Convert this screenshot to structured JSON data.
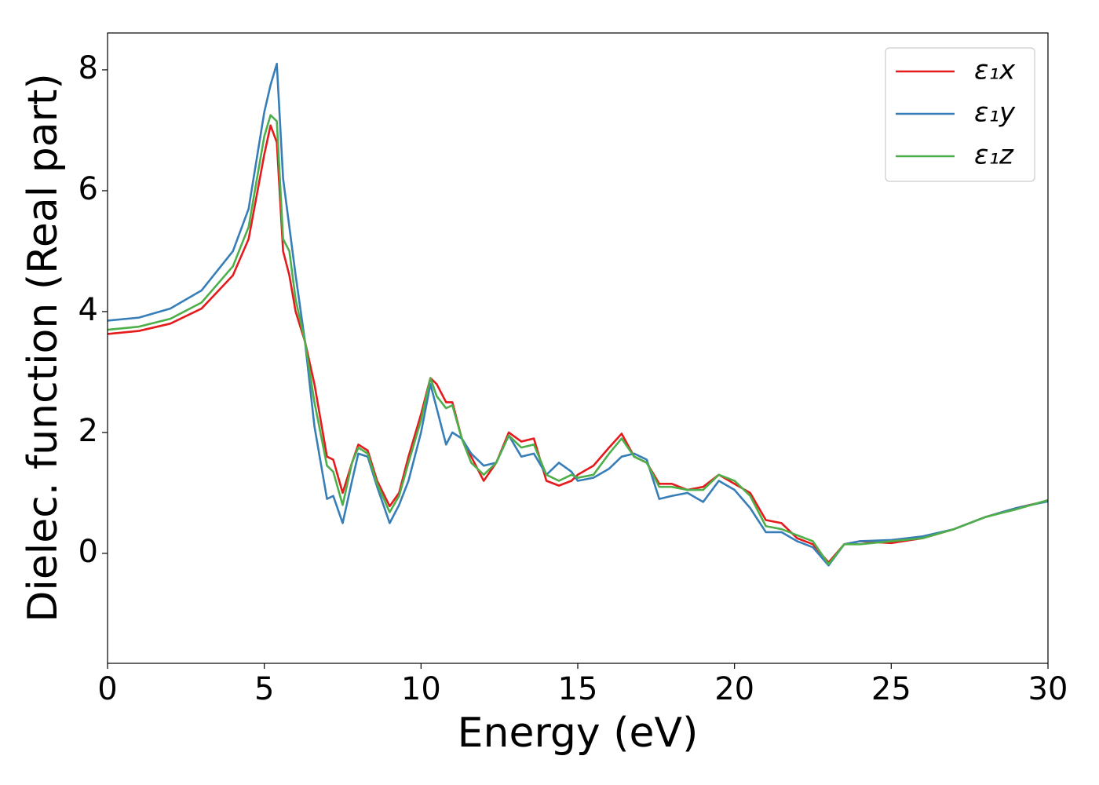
{
  "chart_data": {
    "type": "line",
    "xlabel": "Energy (eV)",
    "ylabel": "Dielec. function (Real part)",
    "x": [
      0,
      1,
      2,
      3,
      4,
      4.5,
      5,
      5.2,
      5.4,
      5.6,
      5.8,
      6,
      6.3,
      6.6,
      7,
      7.2,
      7.5,
      7.8,
      8,
      8.3,
      8.6,
      9,
      9.3,
      9.6,
      10,
      10.3,
      10.5,
      10.8,
      11,
      11.3,
      11.6,
      12,
      12.4,
      12.8,
      13.2,
      13.6,
      14,
      14.4,
      14.8,
      15,
      15.5,
      16,
      16.4,
      16.8,
      17.2,
      17.6,
      18,
      18.5,
      19,
      19.5,
      20,
      20.5,
      21,
      21.5,
      22,
      22.5,
      23,
      23.5,
      24,
      25,
      26,
      27,
      28,
      29,
      30
    ],
    "series": [
      {
        "name": "ε₁x",
        "color": "#e41a1c",
        "values": [
          3.63,
          3.68,
          3.8,
          4.05,
          4.6,
          5.2,
          6.6,
          7.08,
          6.8,
          5.0,
          4.6,
          4.0,
          3.5,
          2.8,
          1.6,
          1.55,
          1.0,
          1.5,
          1.8,
          1.7,
          1.2,
          0.78,
          1.0,
          1.6,
          2.3,
          2.9,
          2.8,
          2.5,
          2.5,
          1.9,
          1.6,
          1.2,
          1.5,
          2.0,
          1.85,
          1.9,
          1.2,
          1.12,
          1.2,
          1.3,
          1.45,
          1.75,
          1.98,
          1.6,
          1.5,
          1.15,
          1.15,
          1.05,
          1.1,
          1.3,
          1.15,
          1.0,
          0.55,
          0.5,
          0.25,
          0.15,
          -0.15,
          0.15,
          0.2,
          0.17,
          0.25,
          0.4,
          0.6,
          0.75,
          0.87
        ]
      },
      {
        "name": "ε₁y",
        "color": "#377eb8",
        "values": [
          3.85,
          3.9,
          4.05,
          4.35,
          5.0,
          5.7,
          7.3,
          7.75,
          8.1,
          6.2,
          5.4,
          4.6,
          3.5,
          2.1,
          0.9,
          0.95,
          0.5,
          1.2,
          1.65,
          1.6,
          1.1,
          0.5,
          0.8,
          1.2,
          2.0,
          2.8,
          2.4,
          1.8,
          2.0,
          1.9,
          1.65,
          1.45,
          1.5,
          1.95,
          1.6,
          1.65,
          1.3,
          1.5,
          1.35,
          1.2,
          1.25,
          1.4,
          1.6,
          1.65,
          1.55,
          0.9,
          0.95,
          1.0,
          0.85,
          1.2,
          1.05,
          0.75,
          0.35,
          0.35,
          0.2,
          0.1,
          -0.2,
          0.15,
          0.2,
          0.22,
          0.28,
          0.4,
          0.6,
          0.75,
          0.86
        ]
      },
      {
        "name": "ε₁z",
        "color": "#4daf4a",
        "values": [
          3.7,
          3.75,
          3.88,
          4.15,
          4.75,
          5.4,
          6.9,
          7.25,
          7.15,
          5.2,
          5.0,
          4.2,
          3.5,
          2.5,
          1.45,
          1.35,
          0.8,
          1.5,
          1.75,
          1.65,
          1.15,
          0.68,
          0.95,
          1.5,
          2.2,
          2.9,
          2.6,
          2.4,
          2.45,
          1.9,
          1.5,
          1.3,
          1.5,
          1.95,
          1.75,
          1.8,
          1.3,
          1.2,
          1.3,
          1.25,
          1.3,
          1.65,
          1.9,
          1.6,
          1.5,
          1.1,
          1.1,
          1.05,
          1.05,
          1.3,
          1.2,
          0.95,
          0.45,
          0.4,
          0.3,
          0.2,
          -0.18,
          0.15,
          0.15,
          0.2,
          0.25,
          0.4,
          0.6,
          0.73,
          0.88
        ]
      }
    ],
    "xlim": [
      0,
      30
    ],
    "xticks": [
      0,
      5,
      10,
      15,
      20,
      25,
      30
    ],
    "ylim": [
      -1.82,
      8.61
    ],
    "yticks": [
      0,
      2,
      4,
      6,
      8
    ],
    "legend": "upper right",
    "grid": false
  }
}
